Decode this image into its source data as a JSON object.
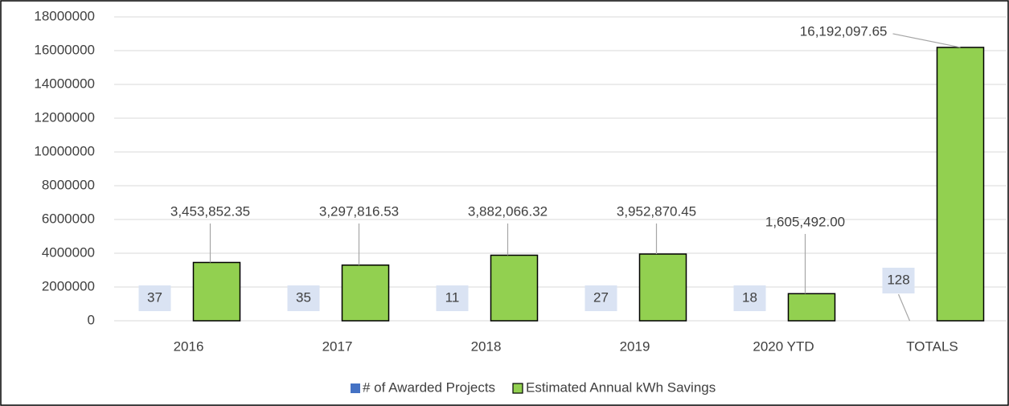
{
  "chart_data": {
    "type": "bar",
    "categories": [
      "2016",
      "2017",
      "2018",
      "2019",
      "2020 YTD",
      "TOTALS"
    ],
    "series": [
      {
        "name": "# of Awarded Projects",
        "color": "#4472c4",
        "values": [
          37,
          35,
          11,
          27,
          18,
          128
        ]
      },
      {
        "name": "Estimated Annual kWh Savings",
        "color": "#92d050",
        "values": [
          3453852.35,
          3297816.53,
          3882066.32,
          3952870.45,
          1605492.0,
          16192097.65
        ],
        "value_labels": [
          "3,453,852.35",
          "3,297,816.53",
          "3,882,066.32",
          "3,952,870.45",
          "1,605,492.00",
          "16,192,097.65"
        ]
      }
    ],
    "ylim": [
      0,
      18000000
    ],
    "yticks": [
      0,
      2000000,
      4000000,
      6000000,
      8000000,
      10000000,
      12000000,
      14000000,
      16000000,
      18000000
    ],
    "grid": true,
    "legend": "bottom"
  }
}
